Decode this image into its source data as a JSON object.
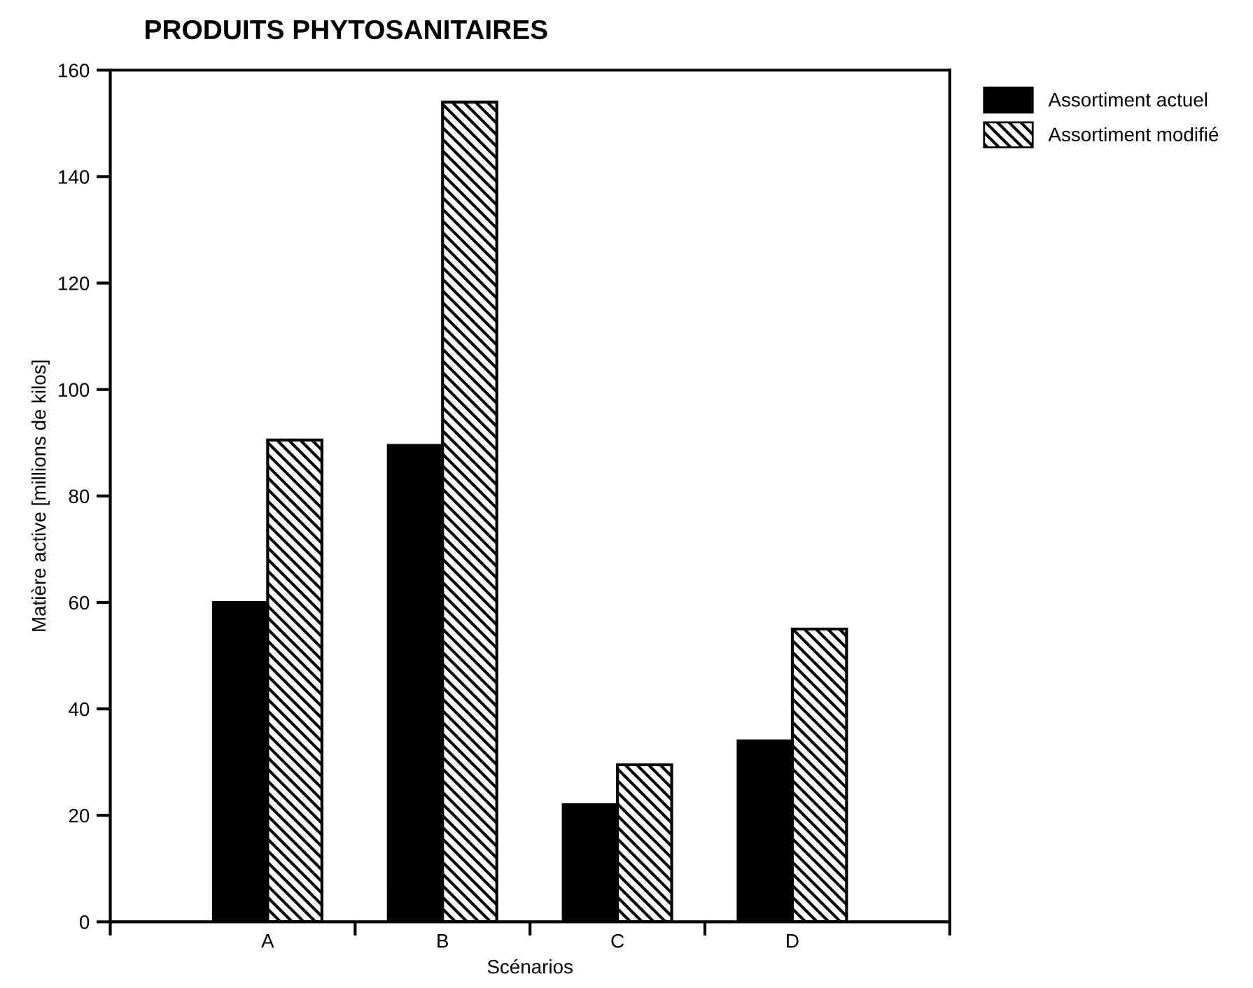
{
  "chart_data": {
    "type": "bar",
    "title": "PRODUITS PHYTOSANITAIRES",
    "xlabel": "Scénarios",
    "ylabel": "Matière active [millions de kilos]",
    "categories": [
      "A",
      "B",
      "C",
      "D"
    ],
    "series": [
      {
        "name": "Assortiment actuel",
        "color": "#000000",
        "values": [
          60,
          89.5,
          22,
          34
        ]
      },
      {
        "name": "Assortiment modifié",
        "color": "#000000",
        "values": [
          90.5,
          154,
          29.5,
          55
        ]
      }
    ],
    "ylim": [
      0,
      160
    ],
    "yticks": [
      0,
      20,
      40,
      60,
      80,
      100,
      120,
      140,
      160
    ],
    "grid": false,
    "legend": "top right"
  }
}
